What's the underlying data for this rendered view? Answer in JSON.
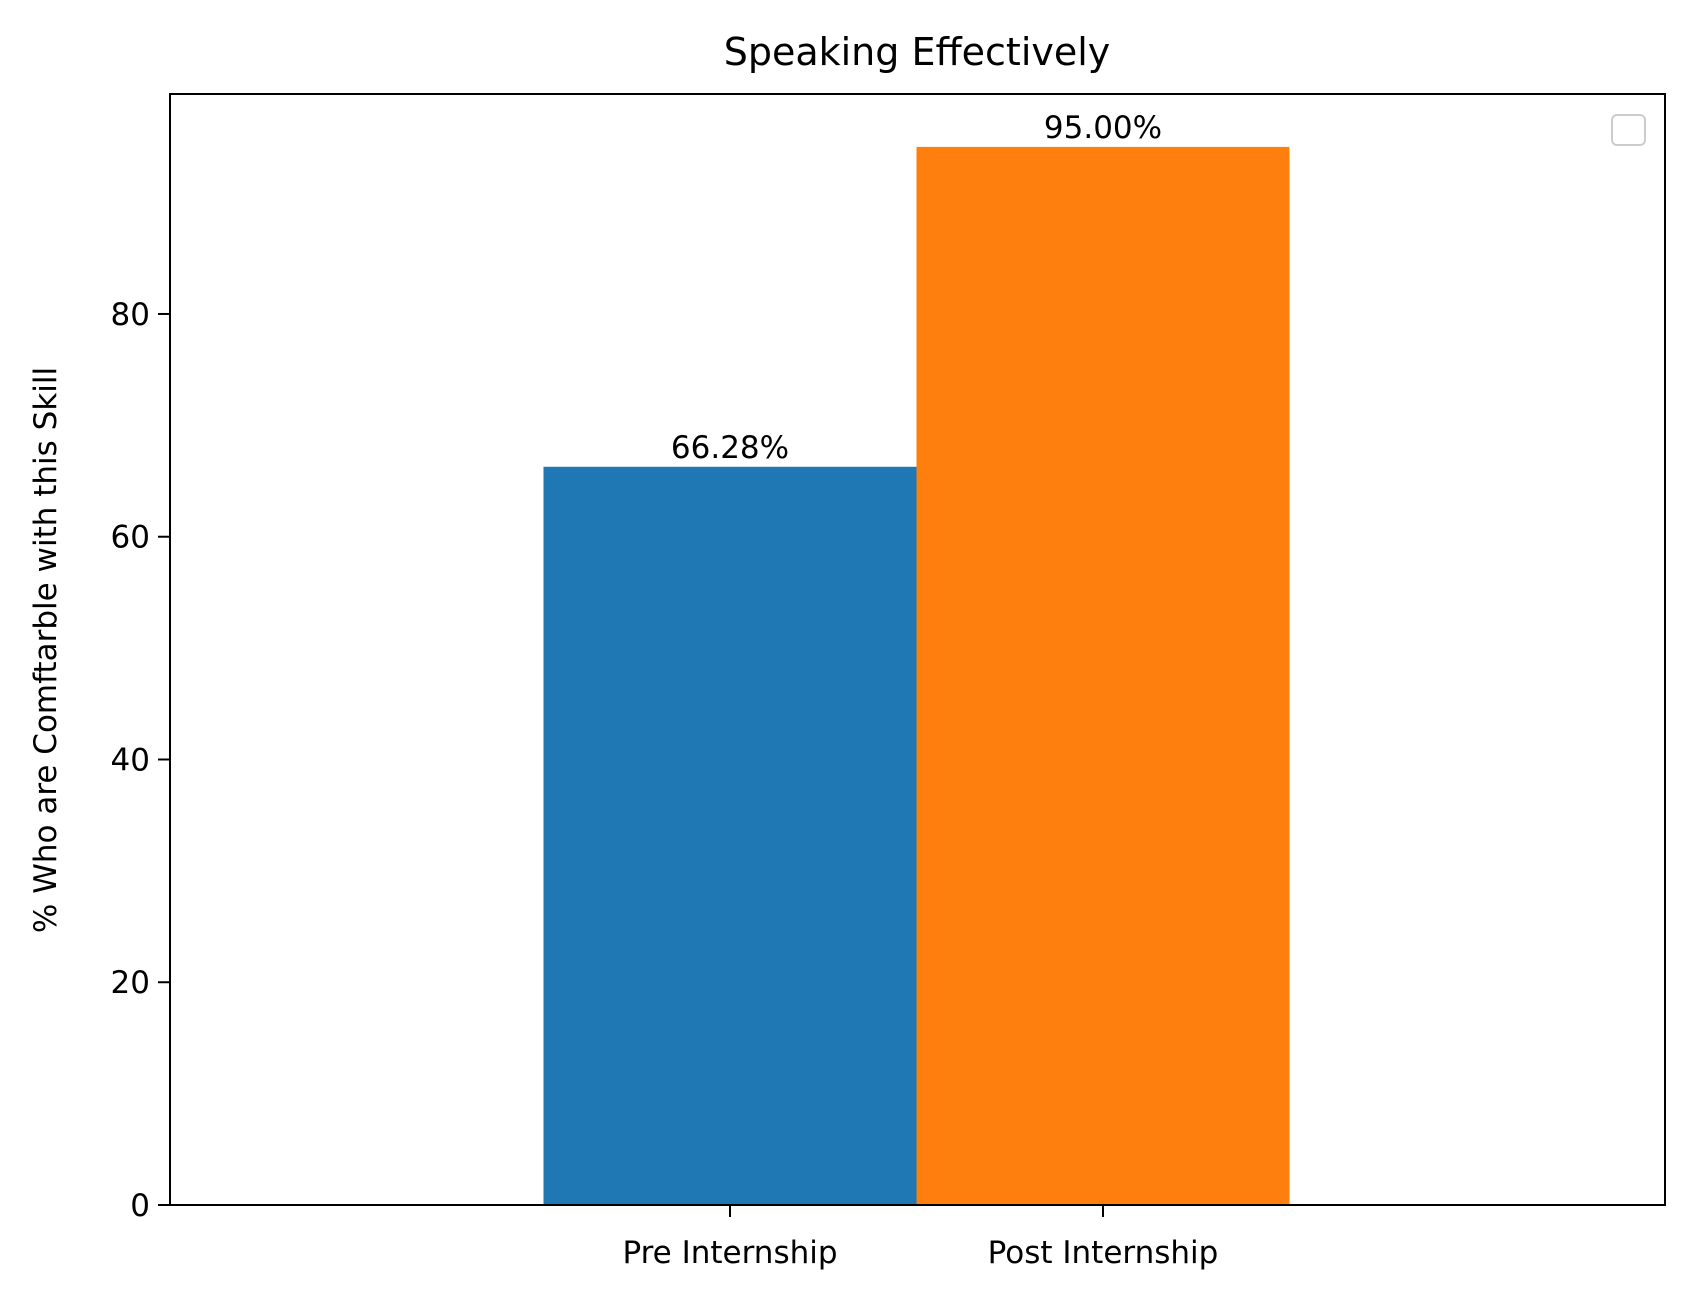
{
  "chart_data": {
    "type": "bar",
    "title": "Speaking Effectively",
    "xlabel": "",
    "ylabel": "% Who are Comftarble with this Skill",
    "categories": [
      "Pre Internship",
      "Post Internship"
    ],
    "values": [
      66.28,
      95.0
    ],
    "data_labels": [
      "66.28%",
      "95.00%"
    ],
    "bar_colors": [
      "#1f77b4",
      "#ff7f0e"
    ],
    "ylim": [
      0,
      99.75
    ],
    "yticks": [
      0,
      20,
      40,
      60,
      80
    ],
    "ytick_labels": [
      "0",
      "20",
      "40",
      "60",
      "80"
    ],
    "legend": {
      "placement": "top-right",
      "entries": []
    },
    "grid": false
  }
}
